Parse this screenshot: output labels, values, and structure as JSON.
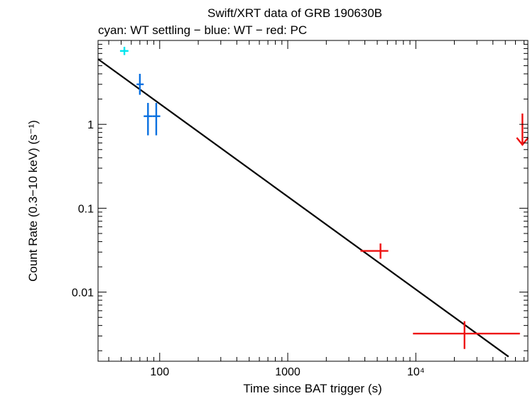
{
  "chart_data": {
    "type": "scatter",
    "title": "Swift/XRT data of GRB 190630B",
    "subtitle": "cyan: WT settling − blue: WT − red: PC",
    "xlabel": "Time since BAT trigger (s)",
    "ylabel": "Count Rate (0.3−10 keV) (s⁻¹)",
    "xscale": "log",
    "yscale": "log",
    "xlim": [
      33,
      75000
    ],
    "ylim": [
      0.0015,
      10
    ],
    "x_ticks": [
      {
        "value": 100,
        "label": "100"
      },
      {
        "value": 1000,
        "label": "1000"
      },
      {
        "value": 10000,
        "label": "10⁴"
      }
    ],
    "y_ticks": [
      {
        "value": 1,
        "label": "1"
      },
      {
        "value": 0.1,
        "label": "0.1"
      },
      {
        "value": 0.01,
        "label": "0.01"
      }
    ],
    "series": [
      {
        "name": "WT settling",
        "color": "#00e5ee",
        "points": [
          {
            "x": 53,
            "xlo": 49,
            "xhi": 57,
            "y": 7.5,
            "ylo": 6.7,
            "yhi": 8.4
          }
        ]
      },
      {
        "name": "WT",
        "color": "#0a70e0",
        "points": [
          {
            "x": 70,
            "xlo": 66,
            "xhi": 75,
            "y": 3.0,
            "ylo": 2.25,
            "yhi": 4.0
          },
          {
            "x": 81,
            "xlo": 75,
            "xhi": 88,
            "y": 1.25,
            "ylo": 0.74,
            "yhi": 1.8
          },
          {
            "x": 94,
            "xlo": 88,
            "xhi": 101,
            "y": 1.25,
            "ylo": 0.74,
            "yhi": 1.8
          }
        ]
      },
      {
        "name": "PC",
        "color": "#ee1111",
        "points": [
          {
            "x": 5300,
            "xlo": 3700,
            "xhi": 6100,
            "y": 0.031,
            "ylo": 0.025,
            "yhi": 0.038
          },
          {
            "x": 24000,
            "xlo": 9500,
            "xhi": 65000,
            "y": 0.0032,
            "ylo": 0.0021,
            "yhi": 0.0045
          }
        ],
        "upper_limits": [
          {
            "x": 68000,
            "y": 0.75
          }
        ]
      }
    ],
    "fit": {
      "type": "power-law",
      "color": "#000000",
      "points": [
        {
          "x": 33,
          "y": 6.0
        },
        {
          "x": 53000,
          "y": 0.0017
        }
      ]
    }
  }
}
